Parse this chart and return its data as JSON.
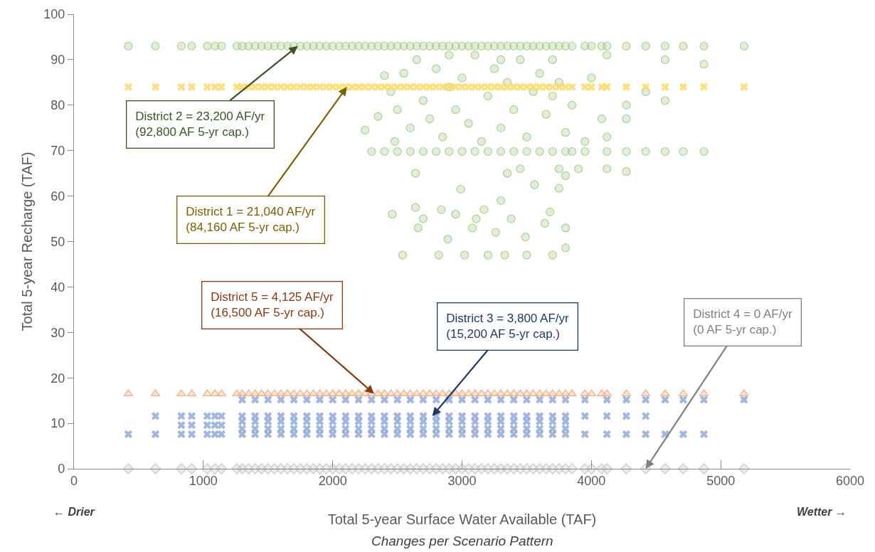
{
  "chart_data": {
    "type": "scatter",
    "xlabel": "Total 5-year Surface Water Available (TAF)",
    "ylabel": "Total 5-year Recharge (TAF)",
    "xlim": [
      0,
      6000
    ],
    "xticks": [
      0,
      1000,
      2000,
      3000,
      4000,
      5000,
      6000
    ],
    "ylim": [
      0,
      100
    ],
    "yticks": [
      0,
      10,
      20,
      30,
      40,
      50,
      60,
      70,
      80,
      90,
      100
    ],
    "grid": false,
    "series": [
      {
        "color": "#a9d18e",
        "marker": "circle",
        "x": [
          420,
          630,
          830,
          910,
          1030,
          1090,
          1140,
          1260,
          1300,
          1350,
          1400,
          1450,
          1500,
          1550,
          1600,
          1650,
          1700,
          1750,
          1800,
          1850,
          1900,
          1950,
          2000,
          2050,
          2100,
          2150,
          2200,
          2250,
          2300,
          2350,
          2400,
          2450,
          2500,
          2550,
          2600,
          2650,
          2700,
          2750,
          2800,
          2850,
          2900,
          2950,
          3000,
          3050,
          3100,
          3150,
          3200,
          3250,
          3300,
          3350,
          3400,
          3450,
          3500,
          3550,
          3600,
          3650,
          3700,
          3750,
          3800,
          3850,
          3950,
          4000,
          4080,
          4120,
          4270,
          4420,
          4570,
          4710,
          4870,
          5180,
          2300,
          2400,
          2500,
          2600,
          2700,
          2800,
          2900,
          3000,
          3100,
          3200,
          3300,
          3400,
          3500,
          3600,
          3700,
          3800,
          3850,
          3950,
          4120,
          4270,
          4420,
          4570,
          4710,
          4870,
          2250,
          2350,
          2400,
          2450,
          2480,
          2500,
          2550,
          2600,
          2650,
          2700,
          2750,
          2800,
          2850,
          2900,
          2950,
          3000,
          3050,
          3100,
          3150,
          3200,
          3250,
          3300,
          3350,
          3400,
          3450,
          3500,
          3550,
          3600,
          3650,
          3700,
          3750,
          3800,
          3850,
          3950,
          4000,
          4080,
          4120,
          4270,
          4270,
          4420,
          4570,
          4570,
          4870,
          4120,
          3700,
          3300,
          2900,
          2460,
          2540,
          2640,
          2660,
          2700,
          2820,
          2840,
          2890,
          2950,
          2990,
          3020,
          3080,
          3110,
          3170,
          3200,
          3260,
          3300,
          3330,
          3380,
          3450,
          3490,
          3500,
          3560,
          3640,
          3680,
          3700,
          3750,
          3800,
          3800,
          3800,
          3750,
          3900,
          4120,
          4270,
          2640,
          3350
        ],
        "values": [
          93,
          93,
          93,
          93,
          93,
          93,
          93,
          93,
          93,
          93,
          93,
          93,
          93,
          93,
          93,
          93,
          93,
          93,
          93,
          93,
          93,
          93,
          93,
          93,
          93,
          93,
          93,
          93,
          93,
          93,
          93,
          93,
          93,
          93,
          93,
          93,
          93,
          93,
          93,
          93,
          93,
          93,
          93,
          93,
          93,
          93,
          93,
          93,
          93,
          93,
          93,
          93,
          93,
          93,
          93,
          93,
          93,
          93,
          93,
          93,
          93,
          93,
          93,
          93,
          93,
          93,
          93,
          93,
          93,
          93,
          69.8,
          69.8,
          69.8,
          69.8,
          69.8,
          69.8,
          69.8,
          69.8,
          69.8,
          69.8,
          69.8,
          69.8,
          69.8,
          69.8,
          69.8,
          69.8,
          69.8,
          69.8,
          69.8,
          69.8,
          69.8,
          69.8,
          69.8,
          69.8,
          74.5,
          77.5,
          86.5,
          83,
          72,
          79,
          87,
          75,
          90,
          81,
          77,
          88,
          73,
          84,
          79,
          86,
          76,
          91,
          72,
          82,
          88,
          75,
          85,
          79,
          90,
          73,
          83,
          87,
          78,
          82,
          85,
          74,
          80,
          72,
          86,
          77,
          73,
          80,
          77,
          83,
          90,
          81,
          89,
          91,
          90,
          90,
          91,
          56,
          47,
          57.5,
          53,
          55,
          47,
          57,
          50.5,
          56,
          61.5,
          47,
          53,
          55,
          57,
          47,
          52,
          59,
          47,
          55,
          66,
          51,
          47,
          62.5,
          54,
          56.5,
          47,
          61.7,
          48.6,
          53,
          64.5,
          66,
          66,
          66,
          65.4,
          65,
          65
        ]
      },
      {
        "color": "#ffd966",
        "marker": "cross",
        "x": [
          420,
          630,
          830,
          910,
          1030,
          1090,
          1140,
          1260,
          1300,
          1350,
          1400,
          1450,
          1500,
          1550,
          1600,
          1650,
          1700,
          1750,
          1800,
          1850,
          1900,
          1950,
          2000,
          2050,
          2100,
          2150,
          2200,
          2250,
          2300,
          2350,
          2400,
          2450,
          2500,
          2550,
          2600,
          2650,
          2700,
          2750,
          2800,
          2850,
          2900,
          2950,
          3000,
          3050,
          3100,
          3150,
          3200,
          3250,
          3300,
          3350,
          3400,
          3450,
          3500,
          3550,
          3600,
          3650,
          3700,
          3750,
          3800,
          3850,
          3950,
          4000,
          4080,
          4120,
          4270,
          4420,
          4570,
          4710,
          4870,
          5180
        ],
        "values": [
          84,
          84,
          84,
          84,
          84,
          84,
          84,
          84,
          84,
          84,
          84,
          84,
          84,
          84,
          84,
          84,
          84,
          84,
          84,
          84,
          84,
          84,
          84,
          84,
          84,
          84,
          84,
          84,
          84,
          84,
          84,
          84,
          84,
          84,
          84,
          84,
          84,
          84,
          84,
          84,
          84,
          84,
          84,
          84,
          84,
          84,
          84,
          84,
          84,
          84,
          84,
          84,
          84,
          84,
          84,
          84,
          84,
          84,
          84,
          84,
          84,
          84,
          84,
          84,
          84,
          84,
          84,
          84,
          84,
          84
        ]
      },
      {
        "color": "#f4b183",
        "marker": "triangle",
        "x": [
          420,
          630,
          830,
          910,
          1030,
          1090,
          1140,
          1260,
          1300,
          1350,
          1400,
          1450,
          1500,
          1550,
          1600,
          1650,
          1700,
          1750,
          1800,
          1850,
          1900,
          1950,
          2000,
          2050,
          2100,
          2150,
          2200,
          2250,
          2300,
          2350,
          2400,
          2450,
          2500,
          2550,
          2600,
          2650,
          2700,
          2750,
          2800,
          2850,
          2900,
          2950,
          3000,
          3050,
          3100,
          3150,
          3200,
          3250,
          3300,
          3350,
          3400,
          3450,
          3500,
          3550,
          3600,
          3650,
          3700,
          3750,
          3800,
          3850,
          3950,
          4000,
          4080,
          4120,
          4270,
          4420,
          4570,
          4710,
          4870,
          5180
        ],
        "values": [
          16.5,
          16.5,
          16.5,
          16.5,
          16.5,
          16.5,
          16.5,
          16.5,
          16.5,
          16.5,
          16.5,
          16.5,
          16.5,
          16.5,
          16.5,
          16.5,
          16.5,
          16.5,
          16.5,
          16.5,
          16.5,
          16.5,
          16.5,
          16.5,
          16.5,
          16.5,
          16.5,
          16.5,
          16.5,
          16.5,
          16.5,
          16.5,
          16.5,
          16.5,
          16.5,
          16.5,
          16.5,
          16.5,
          16.5,
          16.5,
          16.5,
          16.5,
          16.5,
          16.5,
          16.5,
          16.5,
          16.5,
          16.5,
          16.5,
          16.5,
          16.5,
          16.5,
          16.5,
          16.5,
          16.5,
          16.5,
          16.5,
          16.5,
          16.5,
          16.5,
          16.5,
          16.5,
          16.5,
          16.5,
          16.5,
          16.5,
          16.5,
          16.5,
          16.5,
          16.5
        ]
      },
      {
        "color": "#8faadc",
        "marker": "cross",
        "x": [
          420,
          630,
          630,
          830,
          830,
          830,
          910,
          910,
          910,
          1030,
          1030,
          1030,
          1090,
          1090,
          1090,
          1140,
          1140,
          1140,
          1300,
          1300,
          1300,
          1300,
          1300,
          1400,
          1400,
          1400,
          1400,
          1400,
          1500,
          1500,
          1500,
          1500,
          1500,
          1600,
          1600,
          1600,
          1600,
          1600,
          1700,
          1700,
          1700,
          1700,
          1700,
          1800,
          1800,
          1800,
          1800,
          1800,
          1900,
          1900,
          1900,
          1900,
          1900,
          2000,
          2000,
          2000,
          2000,
          2000,
          2100,
          2100,
          2100,
          2100,
          2100,
          2200,
          2200,
          2200,
          2200,
          2200,
          2300,
          2300,
          2300,
          2300,
          2300,
          2400,
          2400,
          2400,
          2400,
          2400,
          2500,
          2500,
          2500,
          2500,
          2500,
          2600,
          2600,
          2600,
          2600,
          2600,
          2700,
          2700,
          2700,
          2700,
          2700,
          2800,
          2800,
          2800,
          2800,
          2800,
          2900,
          2900,
          2900,
          2900,
          2900,
          3000,
          3000,
          3000,
          3000,
          3000,
          3100,
          3100,
          3100,
          3100,
          3100,
          3200,
          3200,
          3200,
          3200,
          3200,
          3300,
          3300,
          3300,
          3300,
          3300,
          3400,
          3400,
          3400,
          3400,
          3400,
          3500,
          3500,
          3500,
          3500,
          3500,
          3600,
          3600,
          3600,
          3600,
          3600,
          3700,
          3700,
          3700,
          3700,
          3700,
          3800,
          3800,
          3800,
          3800,
          3800,
          3950,
          3950,
          3950,
          4120,
          4120,
          4120,
          4270,
          4270,
          4270,
          4420,
          4420,
          4420,
          4570,
          4570,
          4710,
          4710,
          4870,
          4870,
          5180
        ],
        "values": [
          7.6,
          7.6,
          11.6,
          7.6,
          9.6,
          11.6,
          7.6,
          9.6,
          11.6,
          7.6,
          9.6,
          11.6,
          7.6,
          9.6,
          11.6,
          7.6,
          9.6,
          11.6,
          7.6,
          8.8,
          10.4,
          11.6,
          15.2,
          7.6,
          8.8,
          10.4,
          11.6,
          15.2,
          7.6,
          8.8,
          10.4,
          11.6,
          15.2,
          7.6,
          8.8,
          10.4,
          11.6,
          15.2,
          7.6,
          8.8,
          10.4,
          11.6,
          15.2,
          7.6,
          8.8,
          10.4,
          11.6,
          15.2,
          7.6,
          8.8,
          10.4,
          11.6,
          15.2,
          7.6,
          8.8,
          10.4,
          11.6,
          15.2,
          7.6,
          8.8,
          10.4,
          11.6,
          15.2,
          7.6,
          8.8,
          10.4,
          11.6,
          15.2,
          7.6,
          8.8,
          10.4,
          11.6,
          15.2,
          7.6,
          8.8,
          10.4,
          11.6,
          15.2,
          7.6,
          8.8,
          10.4,
          11.6,
          15.2,
          7.6,
          8.8,
          10.4,
          11.6,
          15.2,
          7.6,
          8.8,
          10.4,
          11.6,
          15.2,
          7.6,
          8.8,
          10.4,
          11.6,
          15.2,
          7.6,
          8.8,
          10.4,
          11.6,
          15.2,
          7.6,
          8.8,
          10.4,
          11.6,
          15.2,
          7.6,
          8.8,
          10.4,
          11.6,
          15.2,
          7.6,
          8.8,
          10.4,
          11.6,
          15.2,
          7.6,
          8.8,
          10.4,
          11.6,
          15.2,
          7.6,
          8.8,
          10.4,
          11.6,
          15.2,
          7.6,
          8.8,
          10.4,
          11.6,
          15.2,
          7.6,
          8.8,
          10.4,
          11.6,
          15.2,
          7.6,
          8.8,
          10.4,
          11.6,
          15.2,
          7.6,
          8.8,
          10.4,
          11.6,
          15.2,
          7.6,
          11.6,
          15.2,
          7.6,
          11.6,
          15.2,
          7.6,
          11.6,
          15.2,
          7.6,
          11.6,
          15.2,
          7.6,
          15.2,
          7.6,
          15.2,
          7.6,
          15.2,
          15.2
        ]
      },
      {
        "color": "#c9c9c9",
        "marker": "diamond",
        "x": [
          420,
          630,
          830,
          910,
          1030,
          1090,
          1140,
          1260,
          1300,
          1350,
          1400,
          1450,
          1500,
          1550,
          1600,
          1650,
          1700,
          1750,
          1800,
          1850,
          1900,
          1950,
          2000,
          2050,
          2100,
          2150,
          2200,
          2250,
          2300,
          2350,
          2400,
          2450,
          2500,
          2550,
          2600,
          2650,
          2700,
          2750,
          2800,
          2850,
          2900,
          2950,
          3000,
          3050,
          3100,
          3150,
          3200,
          3250,
          3300,
          3350,
          3400,
          3450,
          3500,
          3550,
          3600,
          3650,
          3700,
          3750,
          3800,
          3850,
          3950,
          4000,
          4080,
          4120,
          4270,
          4420,
          4570,
          4710,
          4870,
          5180
        ],
        "values": [
          0,
          0,
          0,
          0,
          0,
          0,
          0,
          0,
          0,
          0,
          0,
          0,
          0,
          0,
          0,
          0,
          0,
          0,
          0,
          0,
          0,
          0,
          0,
          0,
          0,
          0,
          0,
          0,
          0,
          0,
          0,
          0,
          0,
          0,
          0,
          0,
          0,
          0,
          0,
          0,
          0,
          0,
          0,
          0,
          0,
          0,
          0,
          0,
          0,
          0,
          0,
          0,
          0,
          0,
          0,
          0,
          0,
          0,
          0,
          0,
          0,
          0,
          0,
          0,
          0,
          0,
          0,
          0,
          0,
          0
        ]
      }
    ],
    "annotations": [
      {
        "text": "District 2 = 23,200 AF/yr\n(92,800 AF 5-yr cap.)",
        "x": 1730,
        "y": 93
      },
      {
        "text": "District 1 = 21,040 AF/yr\n(84,160 AF 5-yr cap.)",
        "x": 2110,
        "y": 84
      },
      {
        "text": "District 5 = 4,125 AF/yr\n(16,500 AF 5-yr cap.)",
        "x": 2320,
        "y": 16.5
      },
      {
        "text": "District 3 = 3,800 AF/yr\n(15,200 AF 5-yr cap.)",
        "x": 2770,
        "y": 11.6
      },
      {
        "text": "District 4 = 0 AF/yr\n(0 AF 5-yr cap.)",
        "x": 4420,
        "y": 0
      },
      "← Drier",
      "Wetter →",
      "Changes per Scenario Pattern"
    ]
  }
}
